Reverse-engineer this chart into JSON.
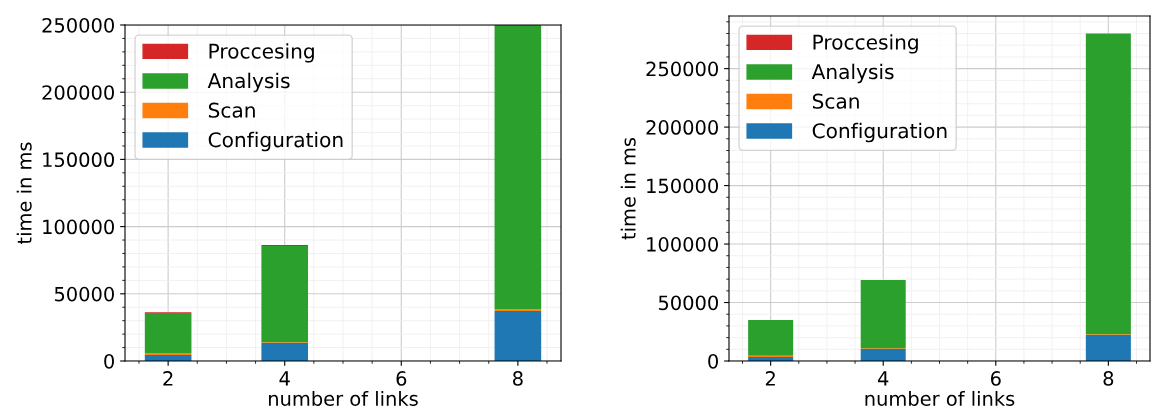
{
  "chart_data": [
    {
      "type": "bar",
      "stacked": true,
      "xlabel": "number of links",
      "ylabel": "time in ms",
      "x": [
        2,
        4,
        8
      ],
      "xlim": [
        1.26,
        8.74
      ],
      "xticks": [
        2,
        4,
        6,
        8
      ],
      "ylim": [
        0,
        250000
      ],
      "yticks": [
        0,
        50000,
        100000,
        150000,
        200000,
        250000
      ],
      "grid": true,
      "legend": "top left",
      "series": [
        {
          "name": "Configuration",
          "color": "#1f77b4",
          "values": [
            4500,
            13400,
            37200
          ]
        },
        {
          "name": "Scan",
          "color": "#ff7f0e",
          "values": [
            1000,
            600,
            1300
          ]
        },
        {
          "name": "Analysis",
          "color": "#2ca02c",
          "values": [
            30200,
            71600,
            211500
          ]
        },
        {
          "name": "Proccesing",
          "color": "#d62728",
          "values": [
            500,
            700,
            null
          ]
        }
      ]
    },
    {
      "type": "bar",
      "stacked": true,
      "xlabel": "number of links",
      "ylabel": "time in ms",
      "x": [
        2,
        4,
        8
      ],
      "xlim": [
        1.26,
        8.74
      ],
      "xticks": [
        2,
        4,
        6,
        8
      ],
      "ylim": [
        0,
        295000
      ],
      "yticks": [
        0,
        50000,
        100000,
        150000,
        200000,
        250000
      ],
      "grid": true,
      "legend": "top left",
      "series": [
        {
          "name": "Configuration",
          "color": "#1f77b4",
          "values": [
            3400,
            10300,
            22300
          ]
        },
        {
          "name": "Scan",
          "color": "#ff7f0e",
          "values": [
            1000,
            500,
            600
          ]
        },
        {
          "name": "Analysis",
          "color": "#2ca02c",
          "values": [
            30700,
            58500,
            257100
          ]
        },
        {
          "name": "Proccesing",
          "color": "#d62728",
          "values": [
            null,
            null,
            null
          ]
        }
      ]
    }
  ]
}
